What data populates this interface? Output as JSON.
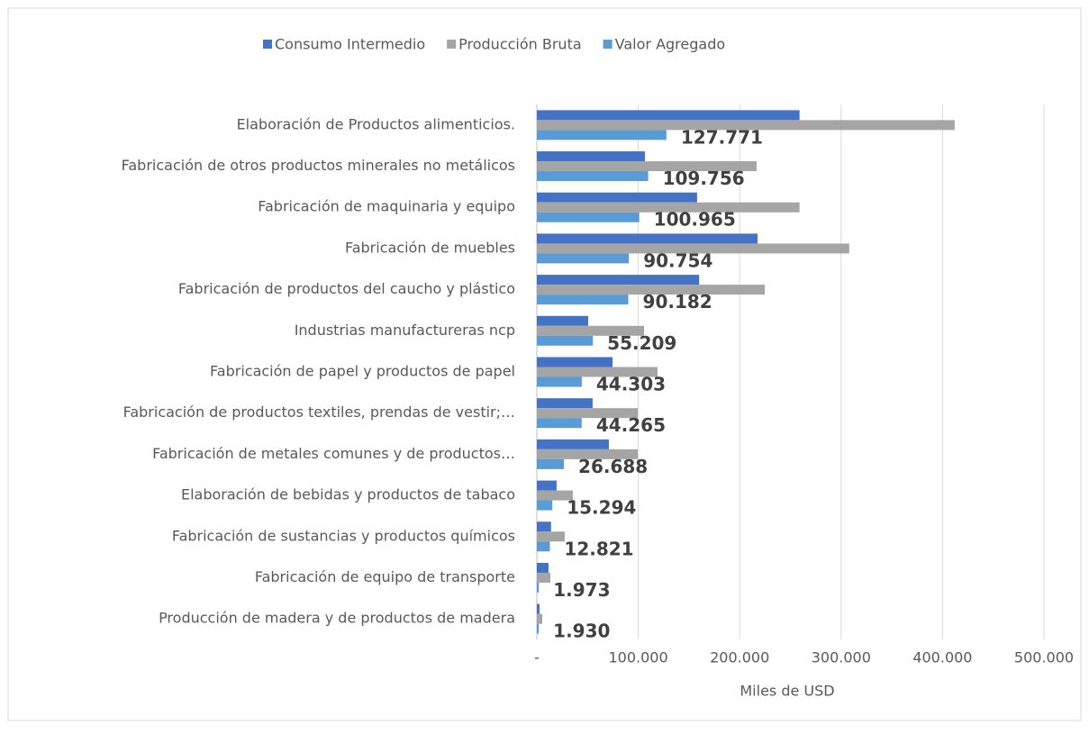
{
  "chart_data": {
    "type": "bar",
    "orientation": "horizontal",
    "categories": [
      "Elaboración de Productos alimenticios.",
      "Fabricación de otros productos minerales no metálicos",
      "Fabricación de maquinaria y equipo",
      "Fabricación de muebles",
      "Fabricación de productos del caucho y plástico",
      "Industrias manufactureras ncp",
      "Fabricación de papel y productos de papel",
      "Fabricación de productos textiles, prendas de vestir;…",
      "Fabricación de  metales comunes y de productos…",
      "Elaboración de bebidas y productos de tabaco",
      "Fabricación de sustancias y productos químicos",
      "Fabricación de equipo de transporte",
      "Producción de madera y de productos de madera"
    ],
    "series": [
      {
        "name": "Consumo Intermedio",
        "color": "#4472c4",
        "values": [
          259000,
          106600,
          158000,
          217600,
          160000,
          50600,
          74600,
          55000,
          71000,
          19500,
          14000,
          11500,
          2700
        ]
      },
      {
        "name": "Producción Bruta",
        "color": "#a5a5a5",
        "values": [
          412000,
          216700,
          259000,
          308000,
          224700,
          105700,
          119000,
          99500,
          99500,
          35500,
          27500,
          13300,
          5300
        ]
      },
      {
        "name": "Valor Agregado",
        "color": "#5b9bd5",
        "values": [
          127771,
          109756,
          100965,
          90754,
          90182,
          55209,
          44303,
          44265,
          26688,
          15294,
          12821,
          1973,
          1930
        ],
        "value_labels": [
          "127.771",
          "109.756",
          "100.965",
          "90.754",
          "90.182",
          "55.209",
          "44.303",
          "44.265",
          "26.688",
          "15.294",
          "12.821",
          "1.973",
          "1.930"
        ]
      }
    ],
    "xlabel": "Miles de USD",
    "xlim": [
      0,
      500000
    ],
    "xticks": [
      {
        "value": 0,
        "label": "-"
      },
      {
        "value": 100000,
        "label": "100.000"
      },
      {
        "value": 200000,
        "label": "200.000"
      },
      {
        "value": 300000,
        "label": "300.000"
      },
      {
        "value": 400000,
        "label": "400.000"
      },
      {
        "value": 500000,
        "label": "500.000"
      }
    ],
    "grid": true,
    "legend": "top"
  }
}
